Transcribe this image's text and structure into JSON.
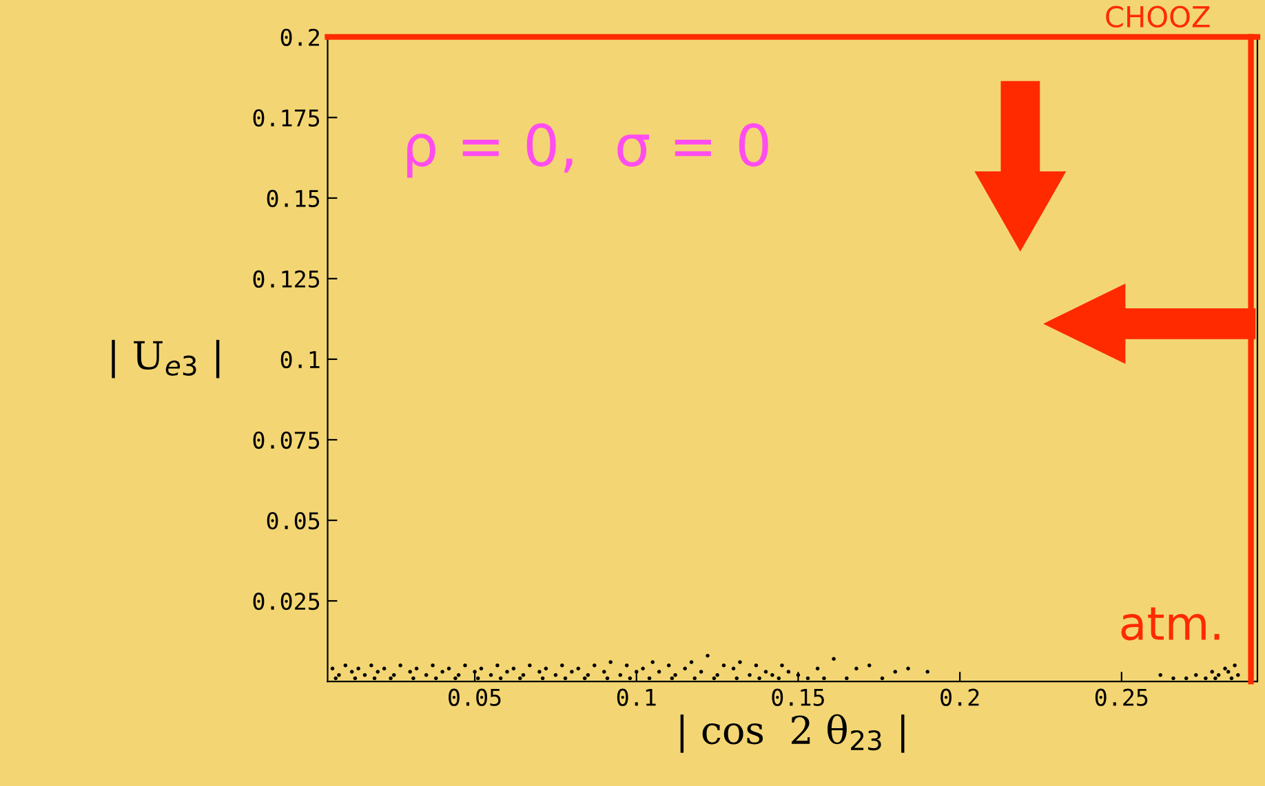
{
  "chart_data": {
    "type": "scatter",
    "xlabel": "| cos  2 θ$_{23}$ |",
    "ylabel": "| U$_{e3}$ |",
    "annotations": [
      "ρ = 0,  σ = 0"
    ],
    "xlim": [
      0.0045,
      0.292
    ],
    "ylim": [
      0,
      0.2
    ],
    "xticks": [
      0.05,
      0.1,
      0.15,
      0.2,
      0.25
    ],
    "yticks": [
      0.025,
      0.05,
      0.075,
      0.1,
      0.125,
      0.15,
      0.175,
      0.2
    ],
    "marker": "circle",
    "grid": false,
    "ref_lines": [
      {
        "axis": "y",
        "value": 0.2,
        "label": "CHOOZ",
        "color": "#ff2a00"
      },
      {
        "axis": "x",
        "value": 0.29,
        "label": "atm.",
        "color": "#ff2a00"
      }
    ],
    "series": [
      {
        "color": "#000000",
        "x": [
          0.006,
          0.008,
          0.01,
          0.012,
          0.014,
          0.016,
          0.018,
          0.02,
          0.022,
          0.025,
          0.027,
          0.03,
          0.032,
          0.035,
          0.037,
          0.04,
          0.042,
          0.045,
          0.047,
          0.05,
          0.052,
          0.055,
          0.057,
          0.06,
          0.062,
          0.065,
          0.067,
          0.07,
          0.072,
          0.075,
          0.077,
          0.08,
          0.082,
          0.085,
          0.087,
          0.09,
          0.092,
          0.095,
          0.097,
          0.1,
          0.102,
          0.105,
          0.107,
          0.11,
          0.112,
          0.115,
          0.117,
          0.12,
          0.122,
          0.125,
          0.127,
          0.13,
          0.132,
          0.135,
          0.137,
          0.14,
          0.142,
          0.145,
          0.147,
          0.15,
          0.153,
          0.156,
          0.158,
          0.161,
          0.165,
          0.168,
          0.172,
          0.176,
          0.18,
          0.184,
          0.19,
          0.007,
          0.013,
          0.019,
          0.024,
          0.031,
          0.038,
          0.044,
          0.051,
          0.058,
          0.064,
          0.071,
          0.078,
          0.084,
          0.091,
          0.098,
          0.104,
          0.111,
          0.118,
          0.124,
          0.131,
          0.138,
          0.144,
          0.262,
          0.266,
          0.27,
          0.273,
          0.276,
          0.278,
          0.28,
          0.282,
          0.284,
          0.285,
          0.286,
          0.279,
          0.283
        ],
        "values": [
          0.004,
          0.002,
          0.005,
          0.003,
          0.004,
          0.002,
          0.005,
          0.003,
          0.004,
          0.002,
          0.005,
          0.003,
          0.004,
          0.002,
          0.005,
          0.003,
          0.004,
          0.002,
          0.005,
          0.003,
          0.004,
          0.002,
          0.005,
          0.003,
          0.004,
          0.002,
          0.005,
          0.003,
          0.004,
          0.002,
          0.005,
          0.003,
          0.004,
          0.002,
          0.005,
          0.003,
          0.006,
          0.002,
          0.005,
          0.003,
          0.004,
          0.006,
          0.003,
          0.005,
          0.002,
          0.004,
          0.006,
          0.003,
          0.008,
          0.002,
          0.005,
          0.004,
          0.006,
          0.002,
          0.005,
          0.003,
          0.002,
          0.005,
          0.003,
          0.002,
          0.001,
          0.004,
          0.001,
          0.007,
          0.001,
          0.004,
          0.005,
          0.001,
          0.003,
          0.004,
          0.003,
          0.001,
          0.001,
          0.001,
          0.001,
          0.001,
          0.001,
          0.001,
          0.001,
          0.001,
          0.001,
          0.001,
          0.001,
          0.001,
          0.001,
          0.001,
          0.001,
          0.001,
          0.001,
          0.001,
          0.001,
          0.001,
          0.001,
          0.002,
          0.001,
          0.001,
          0.002,
          0.001,
          0.003,
          0.002,
          0.004,
          0.001,
          0.005,
          0.002,
          0.001,
          0.003
        ]
      }
    ]
  }
}
